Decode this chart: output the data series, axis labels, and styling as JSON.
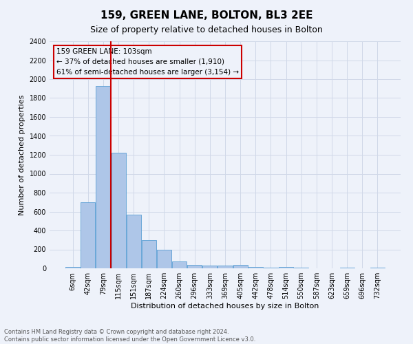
{
  "title": "159, GREEN LANE, BOLTON, BL3 2EE",
  "subtitle": "Size of property relative to detached houses in Bolton",
  "xlabel": "Distribution of detached houses by size in Bolton",
  "ylabel": "Number of detached properties",
  "footer_line1": "Contains HM Land Registry data © Crown copyright and database right 2024.",
  "footer_line2": "Contains public sector information licensed under the Open Government Licence v3.0.",
  "bar_labels": [
    "6sqm",
    "42sqm",
    "79sqm",
    "115sqm",
    "151sqm",
    "187sqm",
    "224sqm",
    "260sqm",
    "296sqm",
    "333sqm",
    "369sqm",
    "405sqm",
    "442sqm",
    "478sqm",
    "514sqm",
    "550sqm",
    "587sqm",
    "623sqm",
    "659sqm",
    "696sqm",
    "732sqm"
  ],
  "bar_values": [
    15,
    700,
    1930,
    1220,
    570,
    300,
    200,
    75,
    40,
    30,
    28,
    35,
    12,
    5,
    12,
    5,
    2,
    2,
    10,
    2,
    10
  ],
  "bar_color": "#aec6e8",
  "bar_edgecolor": "#5a9fd4",
  "grid_color": "#d0d8e8",
  "background_color": "#eef2fa",
  "vline_color": "#cc0000",
  "annotation_text": "159 GREEN LANE: 103sqm\n← 37% of detached houses are smaller (1,910)\n61% of semi-detached houses are larger (3,154) →",
  "annotation_box_edgecolor": "#cc0000",
  "ylim": [
    0,
    2400
  ],
  "yticks": [
    0,
    200,
    400,
    600,
    800,
    1000,
    1200,
    1400,
    1600,
    1800,
    2000,
    2200,
    2400
  ],
  "title_fontsize": 11,
  "subtitle_fontsize": 9,
  "xlabel_fontsize": 8,
  "ylabel_fontsize": 8,
  "tick_fontsize": 7,
  "annot_fontsize": 7.5,
  "footer_fontsize": 6
}
